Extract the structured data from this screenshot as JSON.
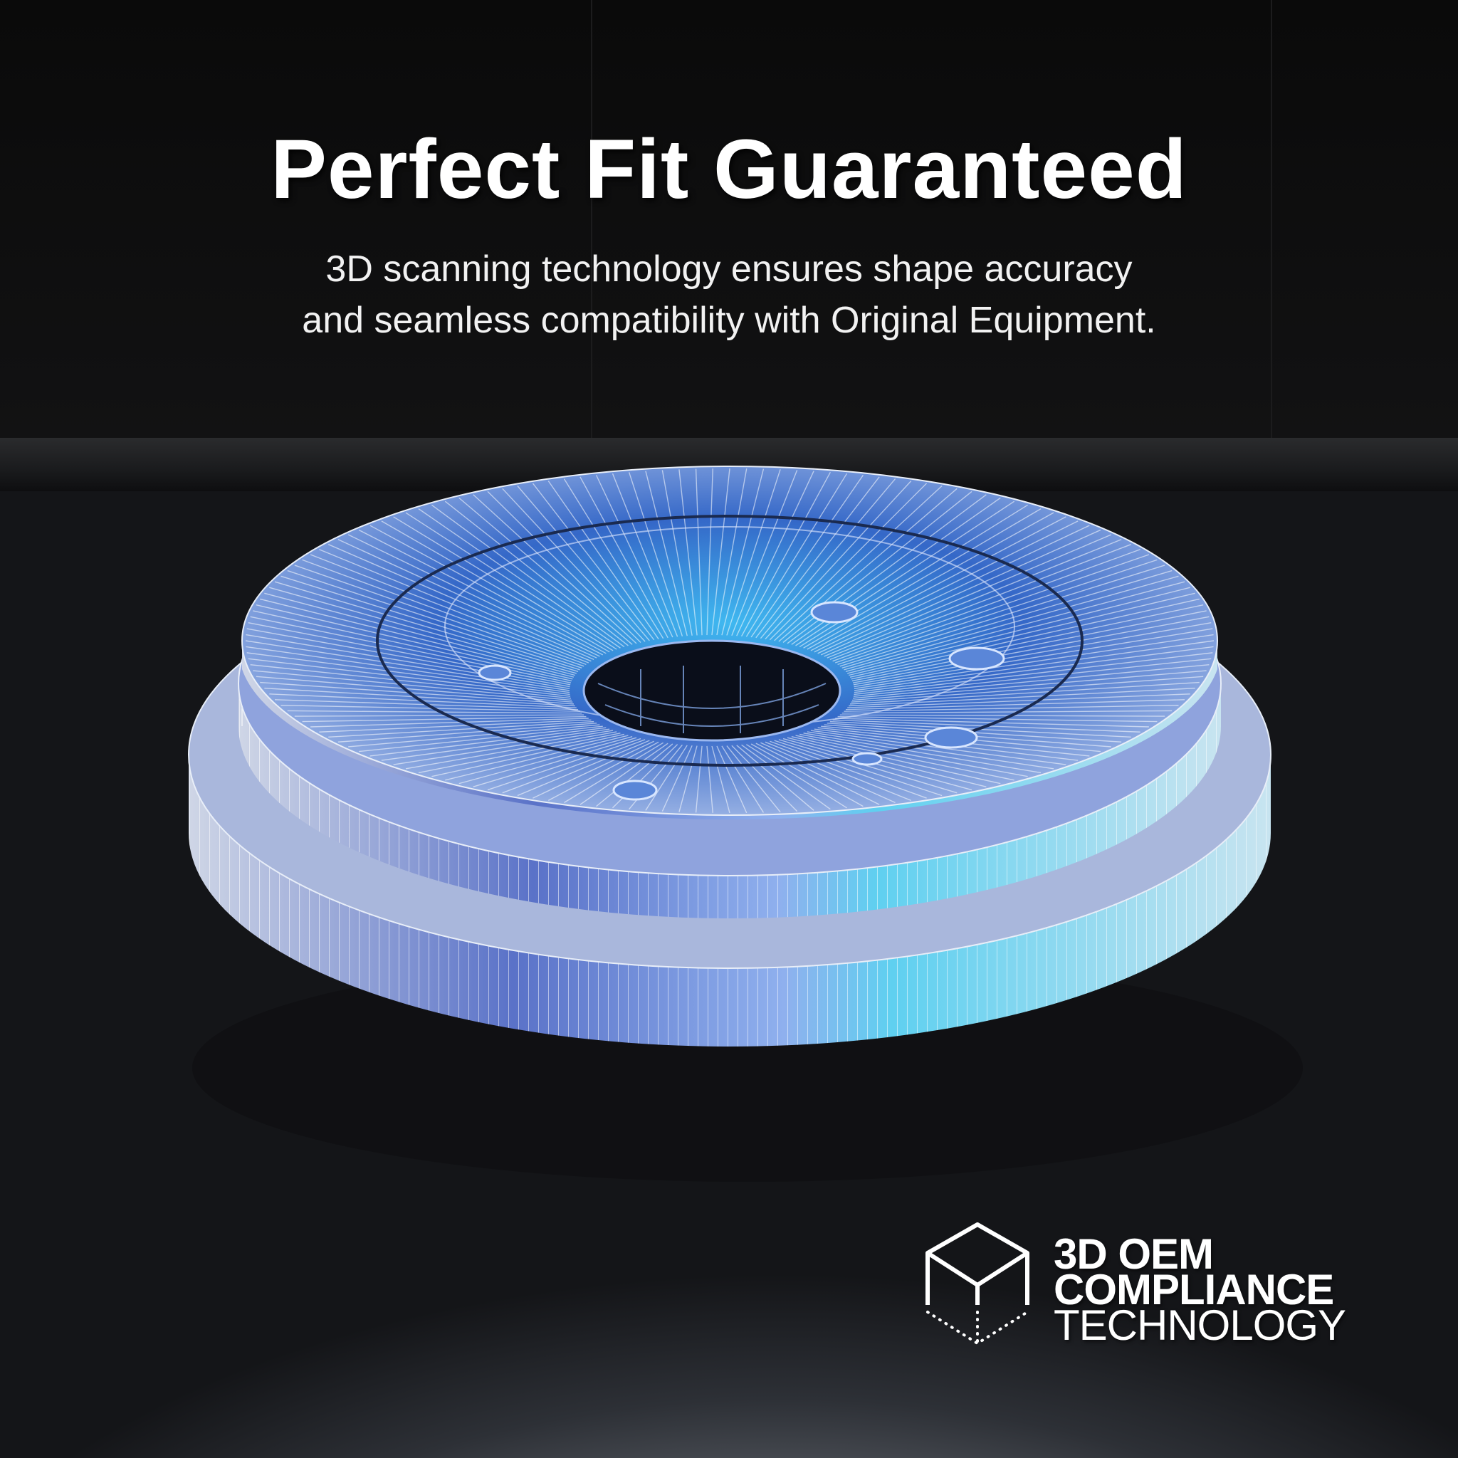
{
  "headline": "Perfect Fit Guaranteed",
  "subtitle": {
    "line1": "3D scanning technology ensures shape accuracy",
    "line2": "and seamless compatibility with Original Equipment."
  },
  "badge": {
    "icon": "wireframe-cube-icon",
    "line1": "3D OEM",
    "line2": "COMPLIANCE",
    "line3": "TECHNOLOGY"
  },
  "product": "brake-drum-wireframe-render",
  "colors": {
    "accent": "#3a8fe0",
    "background": "#0b0b0c",
    "text": "#ffffff"
  }
}
